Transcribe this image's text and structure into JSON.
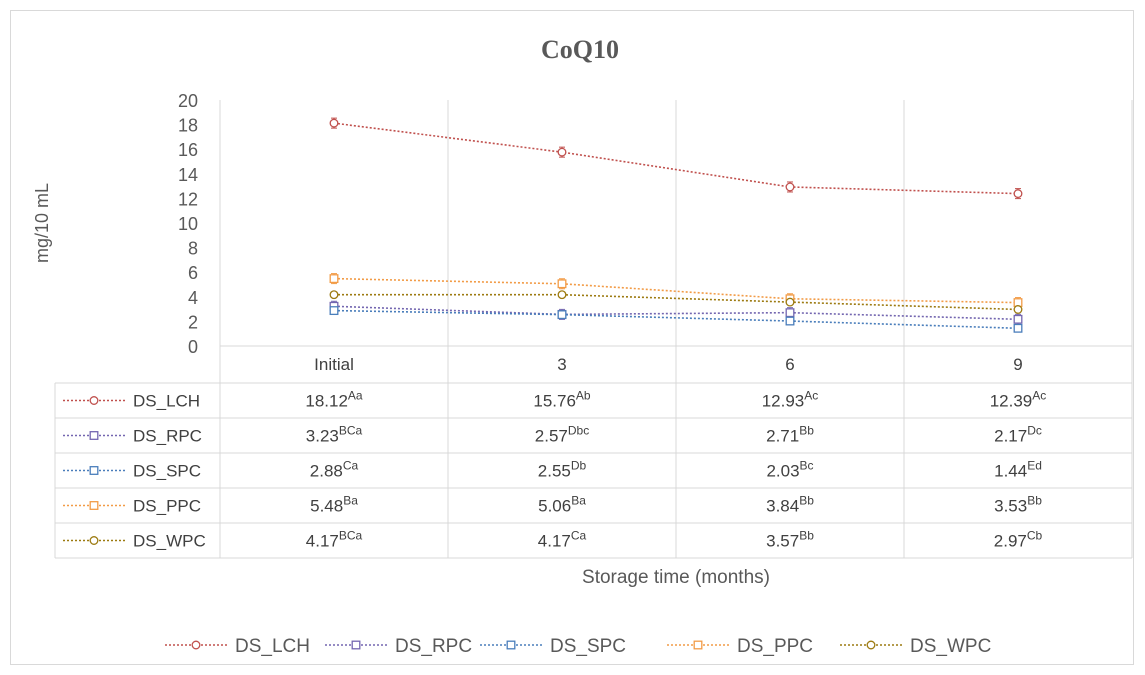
{
  "chart_data": {
    "type": "line",
    "title": "CoQ10",
    "xlabel": "Storage time (months)",
    "ylabel": "mg/10 mL",
    "categories": [
      "Initial",
      "3",
      "6",
      "9"
    ],
    "ylim": [
      0,
      20
    ],
    "y_ticks": [
      "0",
      "2",
      "4",
      "6",
      "8",
      "10",
      "12",
      "14",
      "16",
      "18",
      "20"
    ],
    "grid": "vertical",
    "legend_position": "bottom",
    "series": [
      {
        "name": "DS_LCH",
        "color": "#c0504d",
        "marker": "circle",
        "values": [
          18.12,
          15.76,
          12.93,
          12.39
        ],
        "labels": [
          "18.12",
          "15.76",
          "12.93",
          "12.39"
        ],
        "letters": [
          "Aa",
          "Ab",
          "Ac",
          "Ac"
        ]
      },
      {
        "name": "DS_RPC",
        "color": "#7366b0",
        "marker": "square",
        "values": [
          3.23,
          2.57,
          2.71,
          2.17
        ],
        "labels": [
          "3.23",
          "2.57",
          "2.71",
          "2.17"
        ],
        "letters": [
          "BCa",
          "Dbc",
          "Bb",
          "Dc"
        ]
      },
      {
        "name": "DS_SPC",
        "color": "#4a7ebb",
        "marker": "square",
        "values": [
          2.88,
          2.55,
          2.03,
          1.44
        ],
        "labels": [
          "2.88",
          "2.55",
          "2.03",
          "1.44"
        ],
        "letters": [
          "Ca",
          "Db",
          "Bc",
          "Ed"
        ]
      },
      {
        "name": "DS_PPC",
        "color": "#f29b46",
        "marker": "square",
        "values": [
          5.48,
          5.06,
          3.84,
          3.53
        ],
        "labels": [
          "5.48",
          "5.06",
          "3.84",
          "3.53"
        ],
        "letters": [
          "Ba",
          "Ba",
          "Bb",
          "Bb"
        ]
      },
      {
        "name": "DS_WPC",
        "color": "#9c7a10",
        "marker": "circle",
        "values": [
          4.17,
          4.17,
          3.57,
          2.97
        ],
        "labels": [
          "4.17",
          "4.17",
          "3.57",
          "2.97"
        ],
        "letters": [
          "BCa",
          "Ca",
          "Bb",
          "Cb"
        ]
      }
    ]
  }
}
